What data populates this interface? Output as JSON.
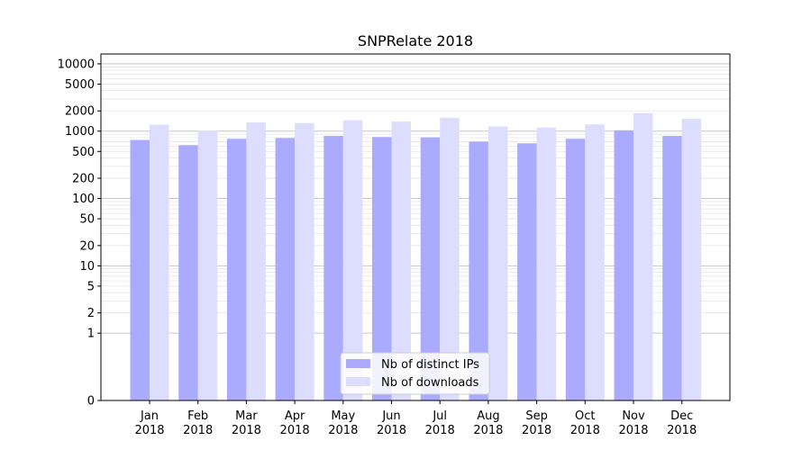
{
  "chart_data": {
    "type": "bar",
    "title": "SNPRelate 2018",
    "xlabel": "",
    "ylabel": "",
    "y_scale": "symlog",
    "ylim": [
      0,
      14000
    ],
    "y_ticks": [
      0,
      1,
      2,
      5,
      10,
      20,
      50,
      100,
      200,
      500,
      1000,
      2000,
      5000,
      10000
    ],
    "categories": [
      "Jan\n2018",
      "Feb\n2018",
      "Mar\n2018",
      "Apr\n2018",
      "May\n2018",
      "Jun\n2018",
      "Jul\n2018",
      "Aug\n2018",
      "Sep\n2018",
      "Oct\n2018",
      "Nov\n2018",
      "Dec\n2018"
    ],
    "series": [
      {
        "name": "Nb of distinct IPs",
        "color": "#aaaaff",
        "values": [
          740,
          620,
          770,
          790,
          850,
          820,
          810,
          700,
          660,
          770,
          1030,
          850
        ]
      },
      {
        "name": "Nb of downloads",
        "color": "#ddddff",
        "values": [
          1250,
          1010,
          1350,
          1320,
          1450,
          1390,
          1580,
          1170,
          1130,
          1260,
          1850,
          1530
        ]
      }
    ],
    "grid": true,
    "legend_position": "bottom-center"
  }
}
